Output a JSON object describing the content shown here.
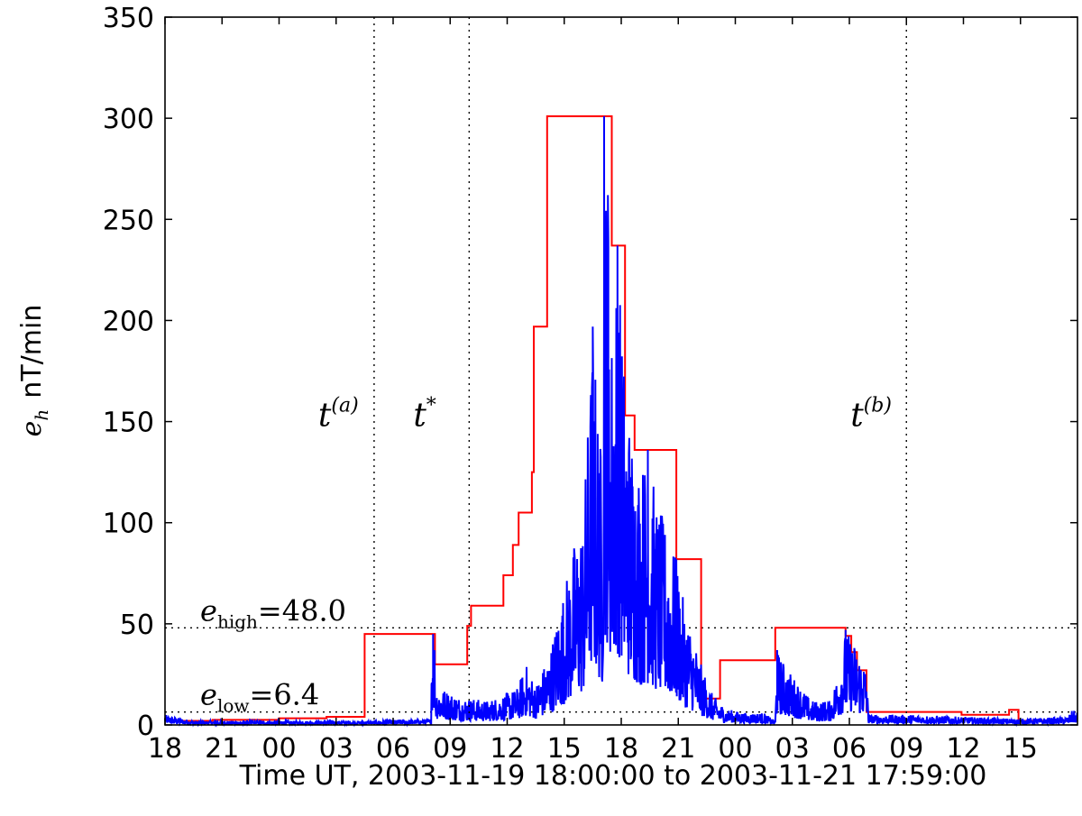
{
  "chart_data": {
    "type": "line",
    "xlabel": "Time UT, 2003-11-19 18:00:00 to 2003-11-21 17:59:00",
    "ylabel": {
      "symbol": "e",
      "subscript": "h",
      "unit": "nT/min"
    },
    "x_unit": "hours",
    "xlim": [
      0,
      48
    ],
    "ylim": [
      0,
      350
    ],
    "x_ticks": [
      {
        "hour": 0,
        "label": "18"
      },
      {
        "hour": 3,
        "label": "21"
      },
      {
        "hour": 6,
        "label": "00"
      },
      {
        "hour": 9,
        "label": "03"
      },
      {
        "hour": 12,
        "label": "06"
      },
      {
        "hour": 15,
        "label": "09"
      },
      {
        "hour": 18,
        "label": "12"
      },
      {
        "hour": 21,
        "label": "15"
      },
      {
        "hour": 24,
        "label": "18"
      },
      {
        "hour": 27,
        "label": "21"
      },
      {
        "hour": 30,
        "label": "00"
      },
      {
        "hour": 33,
        "label": "03"
      },
      {
        "hour": 36,
        "label": "06"
      },
      {
        "hour": 39,
        "label": "09"
      },
      {
        "hour": 42,
        "label": "12"
      },
      {
        "hour": 45,
        "label": "15"
      }
    ],
    "y_ticks": [
      {
        "value": 0,
        "label": "0"
      },
      {
        "value": 50,
        "label": "50"
      },
      {
        "value": 100,
        "label": "100"
      },
      {
        "value": 150,
        "label": "150"
      },
      {
        "value": 200,
        "label": "200"
      },
      {
        "value": 250,
        "label": "250"
      },
      {
        "value": 300,
        "label": "300"
      },
      {
        "value": 350,
        "label": "350"
      }
    ],
    "thresholds": [
      {
        "value": 48.0,
        "symbol": "e",
        "subscript": "high",
        "text": "=48.0"
      },
      {
        "value": 6.4,
        "symbol": "e",
        "subscript": "low",
        "text": "=6.4"
      }
    ],
    "markers": [
      {
        "x": 11.0,
        "symbol": "t",
        "superscript": "(a)",
        "label_y": 155
      },
      {
        "x": 16.0,
        "symbol": "t",
        "superscript": "*",
        "label_y": 155
      },
      {
        "x": 39.0,
        "symbol": "t",
        "superscript": "(b)",
        "label_y": 155
      }
    ],
    "series": [
      {
        "color": "#ff0000",
        "step": true,
        "points": [
          [
            0,
            2
          ],
          [
            2.5,
            2
          ],
          [
            2.5,
            2.5
          ],
          [
            6,
            2.5
          ],
          [
            6,
            3.3
          ],
          [
            8.5,
            3.3
          ],
          [
            8.5,
            4
          ],
          [
            10.5,
            4
          ],
          [
            10.5,
            45
          ],
          [
            14.2,
            45
          ],
          [
            14.2,
            30
          ],
          [
            15.9,
            30
          ],
          [
            15.9,
            49
          ],
          [
            16.1,
            49
          ],
          [
            16.1,
            59
          ],
          [
            17.8,
            59
          ],
          [
            17.8,
            74
          ],
          [
            18.3,
            74
          ],
          [
            18.3,
            89
          ],
          [
            18.6,
            89
          ],
          [
            18.6,
            105
          ],
          [
            19.3,
            105
          ],
          [
            19.3,
            125
          ],
          [
            19.4,
            125
          ],
          [
            19.4,
            197
          ],
          [
            20.1,
            197
          ],
          [
            20.1,
            301
          ],
          [
            23.0,
            301
          ],
          [
            23.0,
            301
          ],
          [
            23.5,
            301
          ],
          [
            23.5,
            237
          ],
          [
            24.2,
            237
          ],
          [
            24.2,
            153
          ],
          [
            24.7,
            153
          ],
          [
            24.7,
            136
          ],
          [
            26.9,
            136
          ],
          [
            26.9,
            82
          ],
          [
            28.2,
            82
          ],
          [
            28.2,
            20
          ],
          [
            28.4,
            20
          ],
          [
            28.4,
            13
          ],
          [
            29.2,
            13
          ],
          [
            29.2,
            32
          ],
          [
            32.1,
            32
          ],
          [
            32.1,
            48
          ],
          [
            35.8,
            48
          ],
          [
            35.8,
            44
          ],
          [
            36.1,
            44
          ],
          [
            36.1,
            36
          ],
          [
            36.4,
            36
          ],
          [
            36.4,
            27
          ],
          [
            36.9,
            27
          ],
          [
            36.9,
            6.4
          ],
          [
            41.9,
            6.4
          ],
          [
            41.9,
            5
          ],
          [
            44.4,
            5
          ],
          [
            44.4,
            7.5
          ],
          [
            44.9,
            7.5
          ],
          [
            44.9,
            2
          ],
          [
            48,
            2
          ]
        ]
      },
      {
        "color": "#0000ff",
        "envelope": [
          [
            0,
            5
          ],
          [
            1.5,
            2
          ],
          [
            10.5,
            2
          ],
          [
            14.0,
            3
          ],
          [
            14.0,
            45
          ],
          [
            14.2,
            45
          ],
          [
            14.2,
            20
          ],
          [
            15.5,
            14
          ],
          [
            17.0,
            12
          ],
          [
            18.5,
            18
          ],
          [
            19.0,
            30
          ],
          [
            19.5,
            20
          ],
          [
            20.2,
            35
          ],
          [
            20.8,
            60
          ],
          [
            21.5,
            90
          ],
          [
            22.0,
            105
          ],
          [
            22.5,
            197
          ],
          [
            23.0,
            130
          ],
          [
            23.1,
            301
          ],
          [
            23.3,
            262
          ],
          [
            23.5,
            200
          ],
          [
            23.8,
            237
          ],
          [
            24.2,
            175
          ],
          [
            24.5,
            150
          ],
          [
            25.0,
            130
          ],
          [
            25.4,
            136
          ],
          [
            25.9,
            110
          ],
          [
            26.5,
            95
          ],
          [
            26.9,
            82
          ],
          [
            27.3,
            60
          ],
          [
            27.8,
            45
          ],
          [
            28.2,
            30
          ],
          [
            28.8,
            15
          ],
          [
            29.5,
            8
          ],
          [
            30.5,
            6
          ],
          [
            31.5,
            6
          ],
          [
            32.1,
            2
          ],
          [
            32.2,
            37
          ],
          [
            32.6,
            30
          ],
          [
            33.2,
            22
          ],
          [
            34.0,
            12
          ],
          [
            35.0,
            12
          ],
          [
            35.5,
            30
          ],
          [
            35.8,
            47
          ],
          [
            36.2,
            42
          ],
          [
            36.6,
            35
          ],
          [
            36.9,
            30
          ],
          [
            37.0,
            5
          ],
          [
            39.5,
            5
          ],
          [
            42.0,
            4
          ],
          [
            45.0,
            3
          ],
          [
            47.5,
            4
          ],
          [
            47.7,
            7
          ],
          [
            48,
            7
          ]
        ]
      }
    ]
  }
}
